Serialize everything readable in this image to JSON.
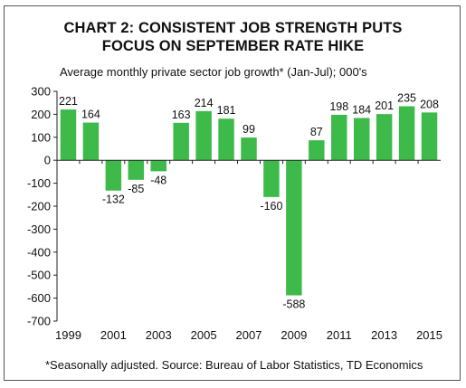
{
  "chart_data": {
    "type": "bar",
    "title_line1": "CHART 2: CONSISTENT JOB STRENGTH PUTS",
    "title_line2": "FOCUS ON SEPTEMBER RATE HIKE",
    "subtitle": "Average monthly private sector job growth* (Jan-Jul); 000's",
    "footnote": "*Seasonally adjusted. Source: Bureau of Labor Statistics, TD Economics",
    "categories": [
      "1999",
      "2000",
      "2001",
      "2002",
      "2003",
      "2004",
      "2005",
      "2006",
      "2007",
      "2008",
      "2009",
      "2010",
      "2011",
      "2012",
      "2013",
      "2014",
      "2015"
    ],
    "values": [
      221,
      164,
      -132,
      -85,
      -48,
      163,
      214,
      181,
      99,
      -160,
      -588,
      87,
      198,
      184,
      201,
      235,
      208
    ],
    "x_tick_labels": [
      "1999",
      "2001",
      "2003",
      "2005",
      "2007",
      "2009",
      "2011",
      "2013",
      "2015"
    ],
    "y_ticks": [
      300,
      200,
      100,
      0,
      -100,
      -200,
      -300,
      -400,
      -500,
      -600,
      -700
    ],
    "ylim": [
      -700,
      300
    ],
    "bar_color": "#3dba49",
    "grid": false
  }
}
